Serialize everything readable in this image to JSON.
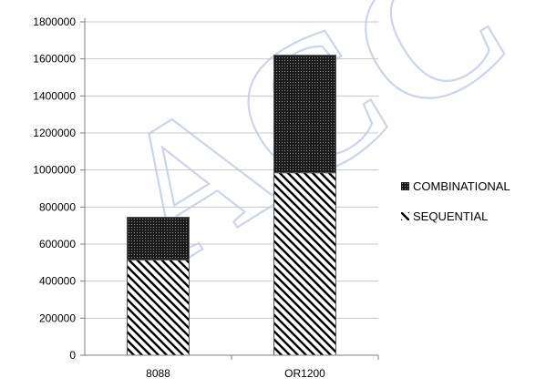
{
  "watermark": "ACC",
  "chart_data": {
    "type": "bar",
    "stacked": true,
    "categories": [
      "8088",
      "OR1200"
    ],
    "series": [
      {
        "name": "SEQUENTIAL",
        "values": [
          515000,
          985000
        ],
        "pattern": "diagonal-stripes"
      },
      {
        "name": "COMBINATIONAL",
        "values": [
          230000,
          635000
        ],
        "pattern": "dotted"
      }
    ],
    "ylim": [
      0,
      1800000
    ],
    "y_ticks": [
      0,
      200000,
      400000,
      600000,
      800000,
      1000000,
      1200000,
      1400000,
      1600000,
      1800000
    ],
    "grid": true,
    "legend_position": "right",
    "legend_order": [
      "COMBINATIONAL",
      "SEQUENTIAL"
    ],
    "colors": {
      "grid": "#c8c8c8",
      "bar_outline": "#555555",
      "watermark": "#9fb3dc"
    }
  }
}
